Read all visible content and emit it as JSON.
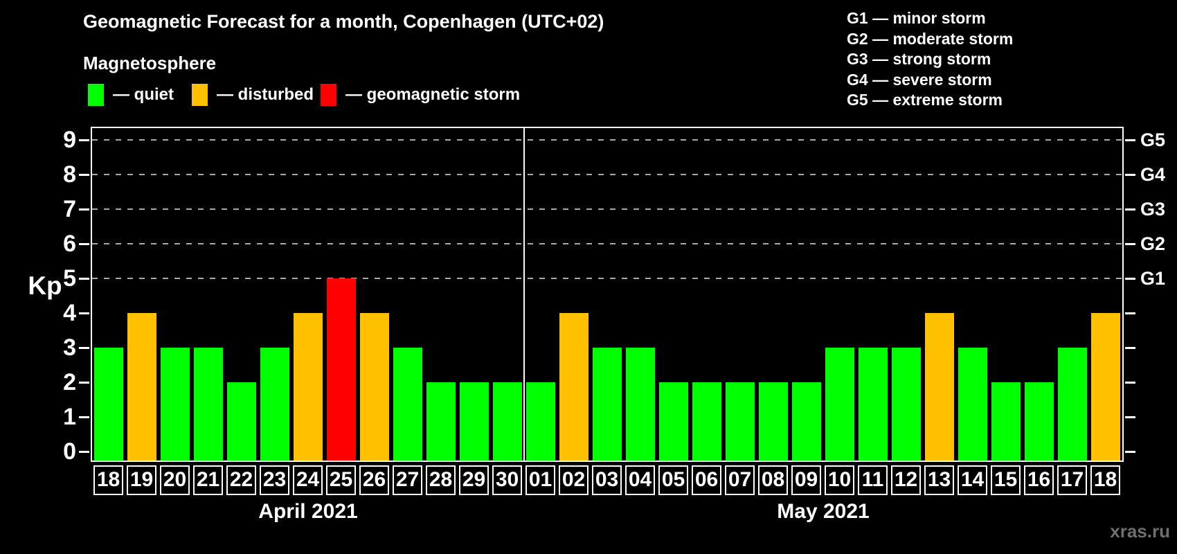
{
  "header": {
    "title": "Geomagnetic Forecast for a month, Copenhagen (UTC+02)"
  },
  "legend": {
    "heading": "Magnetosphere",
    "items": [
      {
        "key": "quiet",
        "label": "— quiet",
        "color": "#00ff00"
      },
      {
        "key": "disturbed",
        "label": "— disturbed",
        "color": "#ffc000"
      },
      {
        "key": "storm",
        "label": "— geomagnetic storm",
        "color": "#ff0000"
      }
    ]
  },
  "storm_scale": {
    "items": [
      {
        "text": "G1 — minor storm"
      },
      {
        "text": "G2 — moderate storm"
      },
      {
        "text": "G3 — strong storm"
      },
      {
        "text": "G4 — severe storm"
      },
      {
        "text": "G5 — extreme storm"
      }
    ]
  },
  "watermark": "xras.ru",
  "chart_data": {
    "type": "bar",
    "title": "Geomagnetic Forecast for a month, Copenhagen (UTC+02)",
    "ylabel": "Kp",
    "ylim": [
      -0.3,
      9.4
    ],
    "y_ticks": [
      0,
      1,
      2,
      3,
      4,
      5,
      6,
      7,
      8,
      9
    ],
    "gridlines_at_kp": [
      5,
      6,
      7,
      8,
      9
    ],
    "grid": true,
    "right_axis_labels": [
      {
        "kp": 5,
        "label": "G1"
      },
      {
        "kp": 6,
        "label": "G2"
      },
      {
        "kp": 7,
        "label": "G3"
      },
      {
        "kp": 8,
        "label": "G4"
      },
      {
        "kp": 9,
        "label": "G5"
      }
    ],
    "palette": {
      "quiet": "#00ff00",
      "disturbed": "#ffc000",
      "storm": "#ff0000"
    },
    "months": [
      {
        "label": "April 2021",
        "bars": [
          {
            "date": "18",
            "kp": 3,
            "state": "quiet"
          },
          {
            "date": "19",
            "kp": 4,
            "state": "disturbed"
          },
          {
            "date": "20",
            "kp": 3,
            "state": "quiet"
          },
          {
            "date": "21",
            "kp": 3,
            "state": "quiet"
          },
          {
            "date": "22",
            "kp": 2,
            "state": "quiet"
          },
          {
            "date": "23",
            "kp": 3,
            "state": "quiet"
          },
          {
            "date": "24",
            "kp": 4,
            "state": "disturbed"
          },
          {
            "date": "25",
            "kp": 5,
            "state": "storm"
          },
          {
            "date": "26",
            "kp": 4,
            "state": "disturbed"
          },
          {
            "date": "27",
            "kp": 3,
            "state": "quiet"
          },
          {
            "date": "28",
            "kp": 2,
            "state": "quiet"
          },
          {
            "date": "29",
            "kp": 2,
            "state": "quiet"
          },
          {
            "date": "30",
            "kp": 2,
            "state": "quiet"
          }
        ]
      },
      {
        "label": "May 2021",
        "bars": [
          {
            "date": "01",
            "kp": 2,
            "state": "quiet"
          },
          {
            "date": "02",
            "kp": 4,
            "state": "disturbed"
          },
          {
            "date": "03",
            "kp": 3,
            "state": "quiet"
          },
          {
            "date": "04",
            "kp": 3,
            "state": "quiet"
          },
          {
            "date": "05",
            "kp": 2,
            "state": "quiet"
          },
          {
            "date": "06",
            "kp": 2,
            "state": "quiet"
          },
          {
            "date": "07",
            "kp": 2,
            "state": "quiet"
          },
          {
            "date": "08",
            "kp": 2,
            "state": "quiet"
          },
          {
            "date": "09",
            "kp": 2,
            "state": "quiet"
          },
          {
            "date": "10",
            "kp": 3,
            "state": "quiet"
          },
          {
            "date": "11",
            "kp": 3,
            "state": "quiet"
          },
          {
            "date": "12",
            "kp": 3,
            "state": "quiet"
          },
          {
            "date": "13",
            "kp": 4,
            "state": "disturbed"
          },
          {
            "date": "14",
            "kp": 3,
            "state": "quiet"
          },
          {
            "date": "15",
            "kp": 2,
            "state": "quiet"
          },
          {
            "date": "16",
            "kp": 2,
            "state": "quiet"
          },
          {
            "date": "17",
            "kp": 3,
            "state": "quiet"
          },
          {
            "date": "18",
            "kp": 4,
            "state": "disturbed"
          }
        ]
      }
    ]
  }
}
